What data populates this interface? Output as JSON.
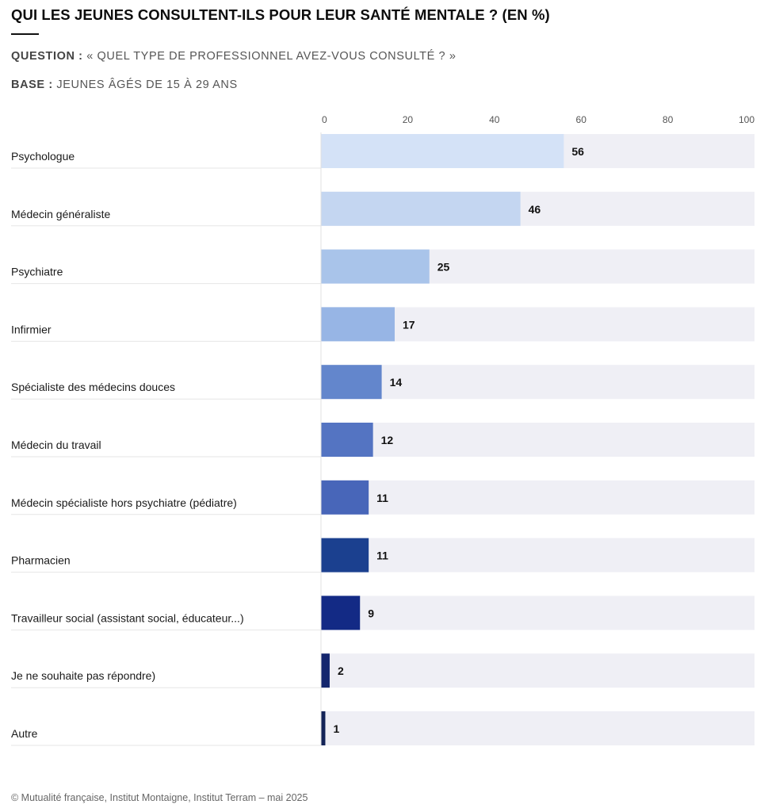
{
  "header": {
    "title": "QUI LES JEUNES CONSULTENT-ILS POUR LEUR SANTÉ MENTALE ? (EN %)",
    "question_label": "QUESTION :",
    "question_text": " « QUEL TYPE DE PROFESSIONNEL AVEZ-VOUS CONSULTÉ ? »",
    "base_label": "BASE :",
    "base_text": " JEUNES ÂGÉS DE 15 À 29 ANS"
  },
  "footer": {
    "source": "© Mutualité française, Institut Montaigne, Institut Terram – mai 2025"
  },
  "chart_data": {
    "type": "bar",
    "orientation": "horizontal",
    "categories": [
      "Psychologue",
      "Médecin généraliste",
      "Psychiatre",
      "Infirmier",
      "Spécialiste des médecins douces",
      "Médecin du travail",
      "Médecin spécialiste hors psychiatre (pédiatre)",
      "Pharmacien",
      "Travailleur social (assistant social, éducateur...)",
      "Je ne souhaite pas répondre)",
      "Autre"
    ],
    "values": [
      56,
      46,
      25,
      17,
      14,
      12,
      11,
      11,
      9,
      2,
      1
    ],
    "value_labels": [
      "56",
      "46",
      "25",
      "17",
      "14",
      "12",
      "11",
      "11",
      "9",
      "2",
      "1"
    ],
    "xlim": [
      0,
      100
    ],
    "xticks": [
      "0",
      "20",
      "40",
      "60",
      "80",
      "100"
    ],
    "grid": false,
    "background_track_color": "#efeff5",
    "bar_colors": [
      "#d4e2f7",
      "#c4d6f1",
      "#a9c4ea",
      "#97b5e5",
      "#6386cc",
      "#5474c2",
      "#4866b9",
      "#1b408f",
      "#132a85",
      "#14266e",
      "#142458"
    ]
  }
}
